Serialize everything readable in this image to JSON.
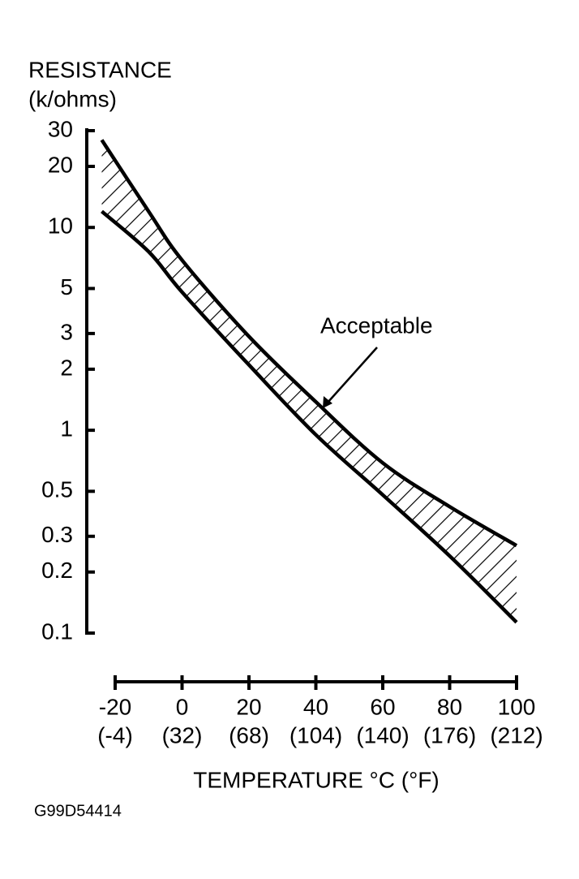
{
  "chart_data": {
    "type": "band",
    "y_label": [
      "RESISTANCE",
      "(k/ohms)"
    ],
    "x_label": "TEMPERATURE °C (°F)",
    "annotation": "Acceptable",
    "figure_id": "G99D54414",
    "ylog": true,
    "ylim": [
      0.1,
      30
    ],
    "yticks": [
      0.1,
      0.2,
      0.3,
      0.5,
      1,
      2,
      3,
      5,
      10,
      20,
      30
    ],
    "xlim": [
      -20,
      100
    ],
    "xticks": [
      -20,
      0,
      20,
      40,
      60,
      80,
      100
    ],
    "xtick_sublabels": [
      "(-4)",
      "(32)",
      "(68)",
      "(104)",
      "(140)",
      "(176)",
      "(212)"
    ],
    "color": "#000000",
    "band": {
      "x": [
        -24,
        -10,
        0,
        20,
        40,
        60,
        80,
        100
      ],
      "upper": [
        27,
        12,
        6.9,
        2.9,
        1.38,
        0.69,
        0.42,
        0.27
      ],
      "lower": [
        12,
        7.6,
        4.8,
        2.1,
        0.95,
        0.48,
        0.24,
        0.113
      ]
    }
  }
}
